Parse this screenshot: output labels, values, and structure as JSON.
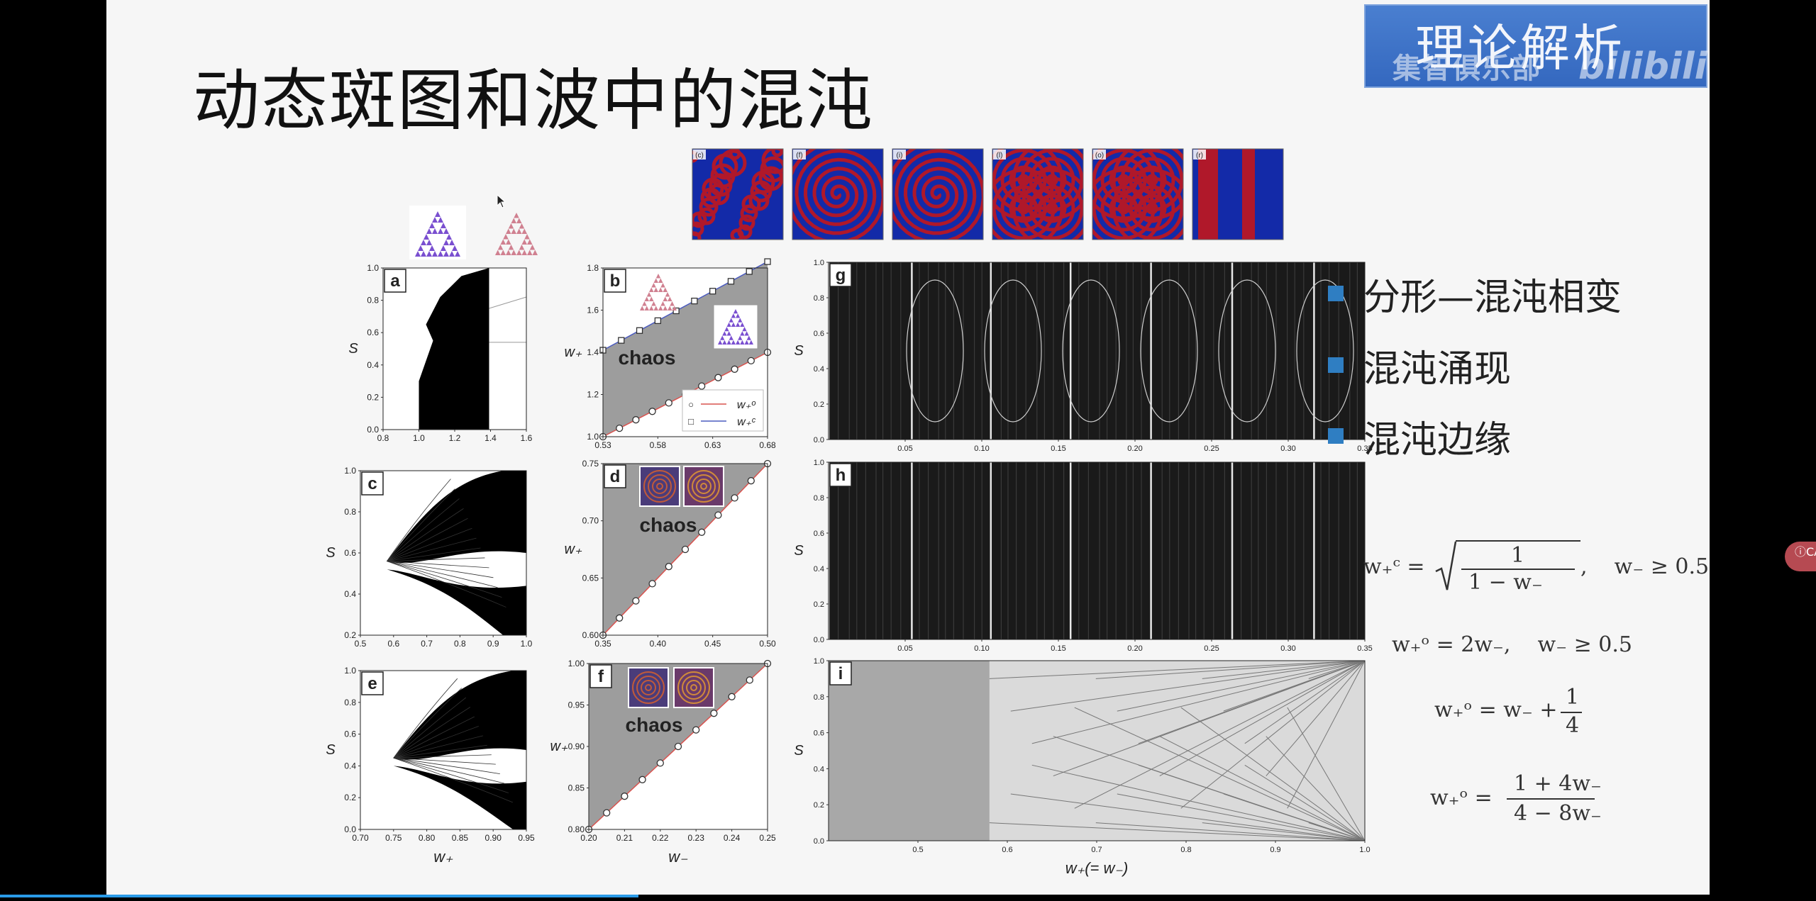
{
  "slide": {
    "title": "动态斑图和波中的混沌",
    "bullets": [
      "分形—混沌相变",
      "混沌涌现",
      "混沌边缘"
    ]
  },
  "watermark": {
    "title": "理论解析",
    "subtitle": "集智俱乐部",
    "logo": "bilibili"
  },
  "side_button": {
    "label": "ⓘCA"
  },
  "colors": {
    "bullet": "#2f7ec2",
    "chaos_fill": "#9d9d9d",
    "curve_red": "#d9534f",
    "curve_blue": "#4b5bbf",
    "pattern_red": "#b0182a",
    "pattern_blue": "#132aa8",
    "progress": "#2a9be8",
    "watermark": "#3a6fc4"
  },
  "formulas": {
    "f1_lhs": "w₊ᶜ =",
    "f1_num": "1",
    "f1_den": "1 − w₋",
    "f1_cond": ",    w₋ ≥ 0.5",
    "f2": "w₊ᵒ = 2w₋,    w₋ ≥ 0.5",
    "f3_lhs": "w₊ᵒ = w₋ +",
    "f3_num": "1",
    "f3_den": "4",
    "f4_lhs": "w₊ᵒ =",
    "f4_num": "1 + 4w₋",
    "f4_den": "4 − 8w₋"
  },
  "pattern_thumbs": [
    "(c)",
    "(f)",
    "(i)",
    "(l)",
    "(o)",
    "(r)"
  ],
  "chart_data": [
    {
      "type": "scatter",
      "panel": "a",
      "ylabel": "S",
      "xticks": [
        "0.8",
        "1.0",
        "1.2",
        "1.4",
        "1.6"
      ],
      "yticks": [
        "0.0",
        "0.2",
        "0.4",
        "0.6",
        "0.8",
        "1.0"
      ],
      "xlim": [
        0.8,
        1.6
      ],
      "ylim": [
        0.0,
        1.0
      ]
    },
    {
      "type": "area",
      "panel": "b",
      "ylabel": "w₊",
      "annotation": "chaos",
      "xticks": [
        "0.53",
        "0.58",
        "0.63",
        "0.68"
      ],
      "yticks": [
        "1.0",
        "1.2",
        "1.4",
        "1.6",
        "1.8"
      ],
      "xlim": [
        0.5,
        0.7
      ],
      "ylim": [
        1.0,
        1.8
      ],
      "legend": [
        {
          "marker": "○",
          "name": "w₊ᵒ"
        },
        {
          "marker": "□",
          "name": "w₊ᶜ"
        }
      ],
      "series": [
        {
          "name": "w₊ᵒ",
          "x": [
            0.5,
            0.7
          ],
          "y": [
            1.0,
            1.4
          ]
        },
        {
          "name": "w₊ᶜ",
          "x": [
            0.5,
            0.7
          ],
          "y": [
            1.41,
            1.83
          ]
        }
      ]
    },
    {
      "type": "scatter",
      "panel": "c",
      "ylabel": "S",
      "xticks": [
        "0.5",
        "0.6",
        "0.7",
        "0.8",
        "0.9",
        "1.0"
      ],
      "yticks": [
        "0.2",
        "0.4",
        "0.6",
        "0.8",
        "1.0"
      ],
      "xlim": [
        0.5,
        1.0
      ],
      "ylim": [
        0.0,
        1.0
      ]
    },
    {
      "type": "area",
      "panel": "d",
      "ylabel": "w₊",
      "annotation": "chaos",
      "xticks": [
        "0.35",
        "0.40",
        "0.45",
        "0.50"
      ],
      "yticks": [
        "0.60",
        "0.65",
        "0.70",
        "0.75"
      ],
      "xlim": [
        0.33,
        0.5
      ],
      "ylim": [
        0.58,
        0.75
      ],
      "series": [
        {
          "name": "w₊ᵒ",
          "x": [
            0.33,
            0.5
          ],
          "y": [
            0.58,
            0.75
          ]
        }
      ]
    },
    {
      "type": "scatter",
      "panel": "e",
      "xlabel": "w₊",
      "ylabel": "S",
      "xticks": [
        "0.70",
        "0.75",
        "0.80",
        "0.85",
        "0.90",
        "0.95"
      ],
      "yticks": [
        "0.0",
        "0.2",
        "0.4",
        "0.6",
        "0.8",
        "1.0"
      ],
      "xlim": [
        0.7,
        0.95
      ],
      "ylim": [
        0.0,
        1.0
      ]
    },
    {
      "type": "area",
      "panel": "f",
      "xlabel": "w₋",
      "ylabel": "w₊",
      "annotation": "chaos",
      "xticks": [
        "0.20",
        "0.21",
        "0.22",
        "0.23",
        "0.24",
        "0.25"
      ],
      "yticks": [
        "0.80",
        "0.85",
        "0.90",
        "0.95",
        "1.00"
      ],
      "xlim": [
        0.2,
        0.25
      ],
      "ylim": [
        0.75,
        1.0
      ],
      "series": [
        {
          "name": "w₊ᵒ",
          "x": [
            0.2,
            0.25
          ],
          "y": [
            0.75,
            1.0
          ]
        }
      ]
    },
    {
      "type": "scatter",
      "panel": "g",
      "ylabel": "S",
      "xticks": [
        "0.05",
        "0.10",
        "0.15",
        "0.20",
        "0.25",
        "0.30",
        "0.35"
      ],
      "yticks": [
        "0.0",
        "0.2",
        "0.4",
        "0.6",
        "0.8",
        "1.0"
      ],
      "xlim": [
        0.0,
        0.35
      ],
      "ylim": [
        0.0,
        1.0
      ]
    },
    {
      "type": "scatter",
      "panel": "h",
      "ylabel": "S",
      "xticks": [
        "0.05",
        "0.10",
        "0.15",
        "0.20",
        "0.25",
        "0.30",
        "0.35"
      ],
      "yticks": [
        "0.0",
        "0.2",
        "0.4",
        "0.6",
        "0.8",
        "1.0"
      ],
      "xlim": [
        0.0,
        0.35
      ],
      "ylim": [
        0.0,
        1.0
      ]
    },
    {
      "type": "scatter",
      "panel": "i",
      "xlabel": "w₊(= w₋)",
      "ylabel": "S",
      "xticks": [
        "0.5",
        "0.6",
        "0.7",
        "0.8",
        "0.9",
        "1.0"
      ],
      "yticks": [
        "0.0",
        "0.2",
        "0.4",
        "0.6",
        "0.8",
        "1.0"
      ],
      "xlim": [
        0.4,
        1.0
      ],
      "ylim": [
        0.0,
        1.0
      ]
    }
  ]
}
